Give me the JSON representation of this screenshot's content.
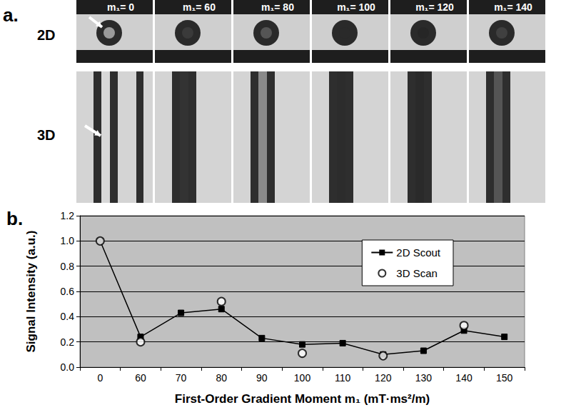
{
  "panel_a": {
    "label": "a.",
    "rows": [
      "2D",
      "3D"
    ],
    "columns": [
      "m₁= 0",
      "m₁= 60",
      "m₁= 80",
      "m₁= 100",
      "m₁= 120",
      "m₁= 140"
    ]
  },
  "chart_data": {
    "type": "line",
    "panel_label": "b.",
    "x_label": "First-Order Gradient Moment m₁ (mT·ms²/m)",
    "y_label": "Signal Intensity (a.u.)",
    "categories": [
      "0",
      "60",
      "70",
      "80",
      "90",
      "100",
      "110",
      "120",
      "130",
      "140",
      "150"
    ],
    "ylim": [
      0,
      1.2
    ],
    "yticks": [
      {
        "value": 0,
        "label": "0.0"
      },
      0.2,
      0.4,
      0.6,
      0.8,
      {
        "value": 1,
        "label": "1.0"
      },
      1.2
    ],
    "grid": true,
    "legend": "upper right",
    "series": [
      {
        "name": "2D Scout",
        "type": "line",
        "color": "#000000",
        "marker": "square",
        "values": [
          1.0,
          0.24,
          0.43,
          0.46,
          0.23,
          0.18,
          0.19,
          0.1,
          0.13,
          0.29,
          0.24
        ]
      },
      {
        "name": "3D Scan",
        "type": "scatter",
        "color": "#000000",
        "marker": "open_circle",
        "values": [
          1.0,
          0.2,
          null,
          0.52,
          null,
          0.11,
          null,
          0.09,
          null,
          0.33,
          null
        ]
      }
    ]
  }
}
